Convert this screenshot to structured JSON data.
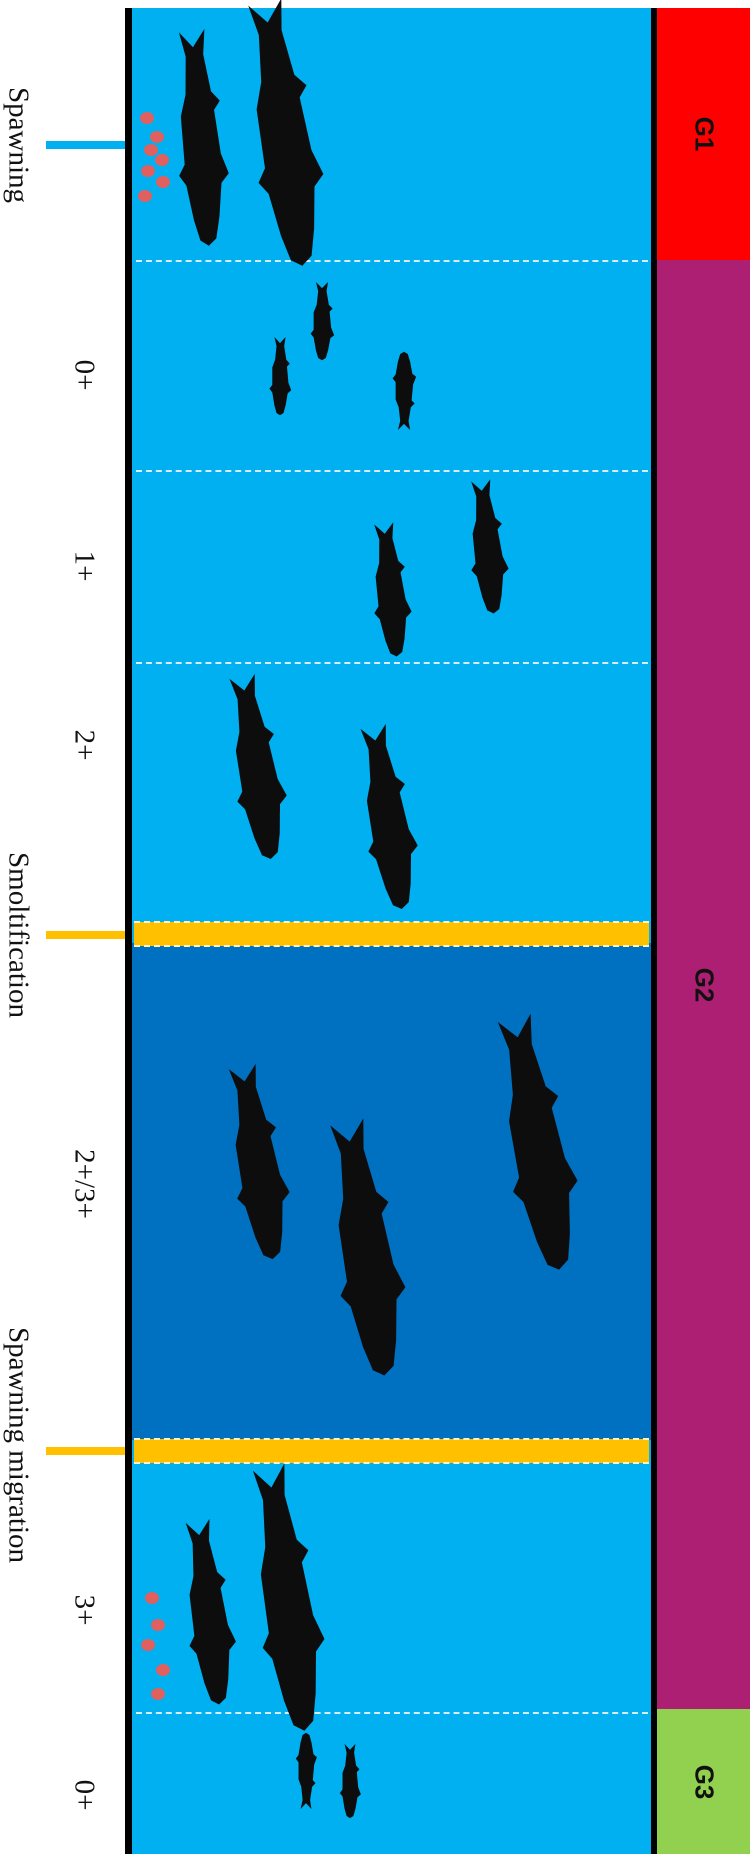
{
  "stages": {
    "age_0": "0+",
    "age_1": "1+",
    "age_2": "2+",
    "age_2_3": "2+/3+",
    "age_3": "3+",
    "age_0_next": "0+"
  },
  "events": {
    "spawning": "Spawning",
    "smoltification": "Smoltification",
    "spawning_migration": "Spawning migration"
  },
  "generations": [
    {
      "label": "G1",
      "color": "#ff0000"
    },
    {
      "label": "G2",
      "color": "#ad1f72"
    },
    {
      "label": "G3",
      "color": "#92d050"
    }
  ],
  "colors": {
    "freshwater": "#00b0f0",
    "sea": "#0070c0",
    "spawning_marker": "#00b0f0",
    "transition_marker": "#ffc000",
    "fish": "#0d0d0d",
    "eggs": "#e06060"
  }
}
